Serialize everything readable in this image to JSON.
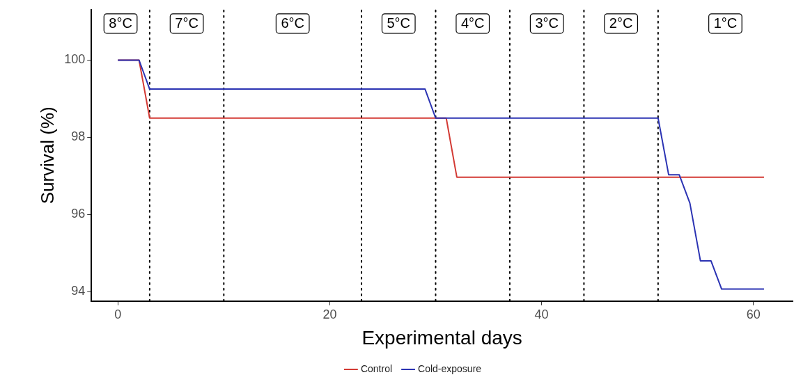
{
  "chart_data": {
    "type": "line",
    "xlabel": "Experimental days",
    "ylabel": "Survival (%)",
    "xlim": [
      -2.5,
      63.7
    ],
    "xticks": [
      0,
      20,
      40,
      60
    ],
    "ylim": [
      93.76,
      101.31
    ],
    "yticks": [
      94,
      96,
      98,
      100
    ],
    "grid": false,
    "legend": "bottom",
    "marker": "none",
    "line_style": "solid",
    "series": [
      {
        "name": "Control",
        "color": "#d33a34",
        "x": [
          0,
          2,
          3,
          31,
          32,
          61
        ],
        "values": [
          100,
          100,
          98.5,
          98.5,
          96.97,
          96.97
        ]
      },
      {
        "name": "Cold-exposure",
        "color": "#2b33b3",
        "x": [
          0,
          2,
          3,
          29,
          30,
          51,
          52,
          53,
          54,
          55,
          56,
          57,
          61
        ],
        "values": [
          100,
          100,
          99.25,
          99.25,
          98.5,
          98.5,
          97.03,
          97.03,
          96.3,
          94.8,
          94.8,
          94.07,
          94.07
        ]
      }
    ],
    "ref_lines": [
      {
        "axis": "x",
        "value": 3,
        "color": "#000000",
        "line_style": "dotted"
      },
      {
        "axis": "x",
        "value": 10,
        "color": "#000000",
        "line_style": "dotted"
      },
      {
        "axis": "x",
        "value": 23,
        "color": "#000000",
        "line_style": "dotted"
      },
      {
        "axis": "x",
        "value": 30,
        "color": "#000000",
        "line_style": "dotted"
      },
      {
        "axis": "x",
        "value": 37,
        "color": "#000000",
        "line_style": "dotted"
      },
      {
        "axis": "x",
        "value": 44,
        "color": "#000000",
        "line_style": "dotted"
      },
      {
        "axis": "x",
        "value": 51,
        "color": "#000000",
        "line_style": "dotted"
      }
    ],
    "annotations": [
      "8°C",
      "7°C",
      "6°C",
      "5°C",
      "4°C",
      "3°C",
      "2°C",
      "1°C"
    ]
  }
}
